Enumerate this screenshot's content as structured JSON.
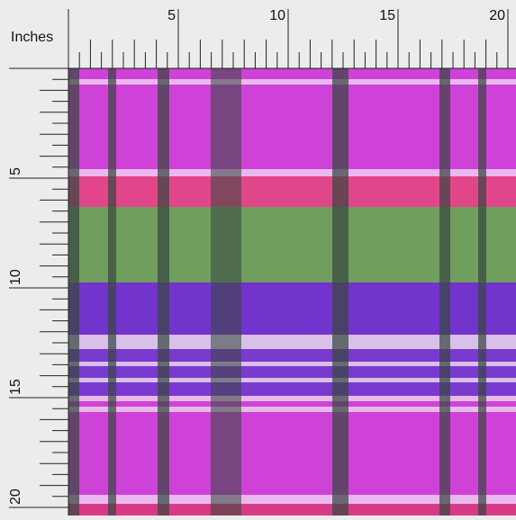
{
  "ruler": {
    "unit": "Inches",
    "top_labels": [
      "5",
      "10",
      "15",
      "20"
    ],
    "left_labels": [
      "5",
      "10",
      "15",
      "20"
    ]
  }
}
